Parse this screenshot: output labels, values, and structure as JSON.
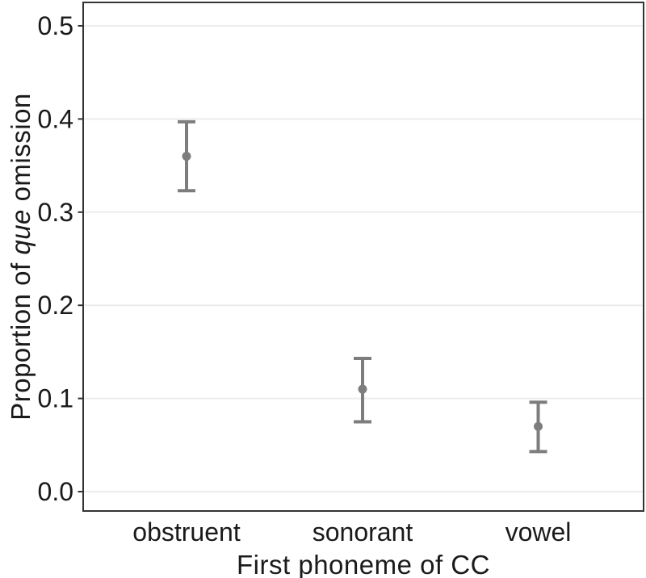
{
  "colors": {
    "background": "#ffffff",
    "marker": "#7d7d7d",
    "panel_border": "#333333",
    "gridline": "#ececec",
    "tick": "#333333",
    "text": "#1a1a1a"
  },
  "y_axis": {
    "title_prefix": "Proportion of ",
    "title_italic_word": "que",
    "title_suffix": " omission",
    "tick_labels": [
      "0.0",
      "0.1",
      "0.2",
      "0.3",
      "0.4",
      "0.5"
    ]
  },
  "x_axis": {
    "title": "First phoneme of CC",
    "category_labels": [
      "obstruent",
      "sonorant",
      "vowel"
    ]
  },
  "chart_data": {
    "type": "scatter",
    "title": "",
    "xlabel": "First phoneme of CC",
    "ylabel": "Proportion of que omission",
    "ylabel_italic_segment": "que",
    "categories": [
      "obstruent",
      "sonorant",
      "vowel"
    ],
    "series": [
      {
        "name": "proportion_of_que_omission",
        "values": [
          0.36,
          0.11,
          0.07
        ],
        "ci_lower": [
          0.323,
          0.075,
          0.043
        ],
        "ci_upper": [
          0.397,
          0.143,
          0.096
        ]
      }
    ],
    "ylim": [
      0.0,
      0.52
    ],
    "yticks": [
      0.0,
      0.1,
      0.2,
      0.3,
      0.4,
      0.5
    ],
    "grid": "horizontal-major-only",
    "legend": "none",
    "marker": "filled-circle-with-errorbar-caps",
    "marker_color": "#7d7d7d"
  }
}
